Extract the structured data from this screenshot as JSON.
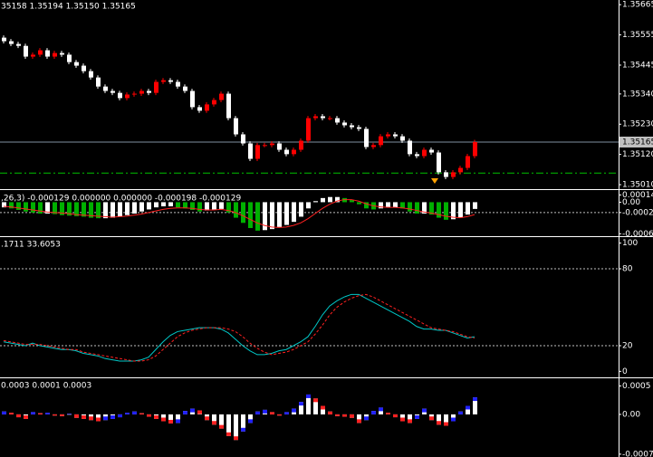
{
  "chart_data": [
    {
      "type": "candlestick",
      "title": "35158 1.35194 1.35150 1.35165",
      "open": [
        1.35545,
        1.35532,
        1.35522,
        1.35515,
        1.35476,
        1.35483,
        1.35499,
        1.35476,
        1.35489,
        1.35483,
        1.35456,
        1.35443,
        1.35423,
        1.354,
        1.35367,
        1.35351,
        1.35344,
        1.35325,
        1.35338,
        1.35341,
        1.35351,
        1.35344,
        1.35384,
        1.3539,
        1.35384,
        1.35367,
        1.35351,
        1.35292,
        1.35279,
        1.35302,
        1.35318,
        1.35341,
        1.35252,
        1.35193,
        1.3516,
        1.35104,
        1.35154,
        1.35154,
        1.3516,
        1.35137,
        1.35121,
        1.35137,
        1.3517,
        1.35252,
        1.35259,
        1.35252,
        1.35252,
        1.35236,
        1.35226,
        1.35219,
        1.35213,
        1.35147,
        1.35154,
        1.35186,
        1.35193,
        1.35186,
        1.3517,
        1.35121,
        1.35114,
        1.35137,
        1.35127,
        1.35055,
        1.35038,
        1.35055,
        1.35071,
        1.35114
      ],
      "high": [
        1.35553,
        1.3554,
        1.3553,
        1.35523,
        1.35491,
        1.35507,
        1.35507,
        1.35497,
        1.35497,
        1.35491,
        1.35464,
        1.35451,
        1.35431,
        1.35408,
        1.35375,
        1.35359,
        1.35352,
        1.35346,
        1.35349,
        1.35359,
        1.35359,
        1.35392,
        1.35398,
        1.35398,
        1.35392,
        1.35375,
        1.35359,
        1.353,
        1.3531,
        1.35326,
        1.35349,
        1.35349,
        1.3526,
        1.35201,
        1.35168,
        1.35162,
        1.35162,
        1.35168,
        1.35168,
        1.35145,
        1.35145,
        1.35178,
        1.3526,
        1.35267,
        1.35267,
        1.3526,
        1.3526,
        1.35244,
        1.35234,
        1.35227,
        1.35221,
        1.35162,
        1.35194,
        1.35201,
        1.35201,
        1.35194,
        1.35178,
        1.35129,
        1.35145,
        1.35145,
        1.35135,
        1.35063,
        1.35063,
        1.35079,
        1.35122,
        1.35173
      ],
      "low": [
        1.35524,
        1.35514,
        1.35507,
        1.35468,
        1.35468,
        1.35475,
        1.35468,
        1.35468,
        1.35475,
        1.35448,
        1.35435,
        1.35415,
        1.35392,
        1.35359,
        1.35343,
        1.35336,
        1.35317,
        1.35317,
        1.3533,
        1.35333,
        1.35336,
        1.35336,
        1.35376,
        1.35376,
        1.35359,
        1.35343,
        1.35284,
        1.35271,
        1.35271,
        1.35294,
        1.3531,
        1.35244,
        1.35185,
        1.35152,
        1.35096,
        1.35096,
        1.35146,
        1.35146,
        1.35129,
        1.35113,
        1.35113,
        1.35129,
        1.35162,
        1.35244,
        1.35244,
        1.35244,
        1.35228,
        1.35218,
        1.35211,
        1.35205,
        1.35139,
        1.35139,
        1.35146,
        1.35178,
        1.35178,
        1.35162,
        1.35113,
        1.35106,
        1.35106,
        1.35119,
        1.35047,
        1.3503,
        1.3503,
        1.35047,
        1.35063,
        1.35106
      ],
      "close": [
        1.35532,
        1.35522,
        1.35515,
        1.35476,
        1.35483,
        1.35499,
        1.35476,
        1.35489,
        1.35483,
        1.35456,
        1.35443,
        1.35423,
        1.354,
        1.35367,
        1.35351,
        1.35344,
        1.35325,
        1.35338,
        1.35341,
        1.35351,
        1.35344,
        1.35384,
        1.3539,
        1.35384,
        1.35367,
        1.35351,
        1.35292,
        1.35279,
        1.35302,
        1.35318,
        1.35341,
        1.35252,
        1.35193,
        1.3516,
        1.35104,
        1.35154,
        1.35154,
        1.3516,
        1.35137,
        1.35121,
        1.35137,
        1.3517,
        1.35252,
        1.35259,
        1.35252,
        1.35252,
        1.35236,
        1.35226,
        1.35219,
        1.35213,
        1.35147,
        1.35154,
        1.35186,
        1.35193,
        1.35186,
        1.3517,
        1.35121,
        1.35114,
        1.35137,
        1.35127,
        1.35055,
        1.35038,
        1.35055,
        1.35071,
        1.35114,
        1.35165
      ],
      "up_color": "#ff0000",
      "down_color": "#ffffff",
      "ylim": [
        1.34997,
        1.35682
      ],
      "yticks": [
        1.35665,
        1.35555,
        1.35445,
        {
          "value": 1.3534,
          "label": "1.35340"
        },
        {
          "value": 1.3523,
          "label": "1.35230"
        },
        {
          "value": 1.3512,
          "label": "1.35120"
        },
        {
          "value": 1.3501,
          "label": "1.35010"
        }
      ],
      "last_price": 1.35165,
      "level": 1.35052,
      "level_color": "#00c000"
    },
    {
      "type": "bar",
      "title": ",26,3) -0.000129 0.000000 0.000000 -0.000198 -0.000129",
      "series": [
        {
          "color": "#ffffff",
          "alt_color": "#00b000",
          "values": [
            -0.0001,
            -0.00012,
            -0.00015,
            -0.00018,
            -0.0002,
            -0.00022,
            -0.00022,
            -0.00023,
            -0.00025,
            -0.00026,
            -0.00027,
            -0.00028,
            -0.0003,
            -0.00031,
            -0.00031,
            -0.0003,
            -0.00028,
            -0.00025,
            -0.00022,
            -0.00018,
            -0.00014,
            -0.0001,
            -8e-05,
            -8e-05,
            -0.0001,
            -0.00012,
            -0.00015,
            -0.00018,
            -0.00016,
            -0.00014,
            -0.00013,
            -0.0002,
            -0.0003,
            -0.0004,
            -0.0005,
            -0.00055,
            -0.00054,
            -0.00052,
            -0.00048,
            -0.00044,
            -0.00038,
            -0.00028,
            -0.00012,
            2e-05,
            8e-05,
            0.0001,
            0.0001,
            8e-05,
            4e-05,
            -4e-05,
            -0.00012,
            -0.00014,
            -0.00012,
            -0.0001,
            -0.0001,
            -0.00012,
            -0.00018,
            -0.00022,
            -0.00022,
            -0.00024,
            -0.0003,
            -0.00034,
            -0.00033,
            -0.0003,
            -0.00024,
            -0.00013
          ]
        },
        {
          "type": "line",
          "color": "#ff2020",
          "values": [
            -8e-05,
            -9e-05,
            -0.00011,
            -0.00013,
            -0.00015,
            -0.00017,
            -0.00019,
            -0.0002,
            -0.00021,
            -0.00022,
            -0.00024,
            -0.00025,
            -0.00026,
            -0.00027,
            -0.00028,
            -0.00029,
            -0.00028,
            -0.00027,
            -0.00025,
            -0.00023,
            -0.0002,
            -0.00017,
            -0.00014,
            -0.00012,
            -0.00011,
            -0.00011,
            -0.00012,
            -0.00014,
            -0.00015,
            -0.00015,
            -0.00014,
            -0.00016,
            -0.0002,
            -0.00026,
            -0.00033,
            -0.0004,
            -0.00045,
            -0.00048,
            -0.00049,
            -0.00048,
            -0.00045,
            -0.0004,
            -0.00032,
            -0.00022,
            -0.00012,
            -4e-05,
            2e-05,
            5e-05,
            5e-05,
            2e-05,
            -3e-05,
            -7e-05,
            -9e-05,
            -0.0001,
            -0.0001,
            -0.00011,
            -0.00013,
            -0.00016,
            -0.00019,
            -0.00021,
            -0.00024,
            -0.00027,
            -0.00029,
            -0.0003,
            -0.00028,
            -0.00024
          ]
        }
      ],
      "ylim": [
        -0.00064,
        0.0002
      ],
      "yticks": [
        0.00014,
        {
          "value": 0,
          "label": "0.00"
        },
        -0.0002,
        -0.00061
      ],
      "levels": [
        -0.0002
      ]
    },
    {
      "type": "line",
      "title": ".1711 33.6053",
      "series": [
        {
          "color": "#00c8c8",
          "values": [
            23,
            22,
            21,
            20,
            22,
            20,
            19,
            18,
            17,
            17,
            16,
            14,
            13,
            12,
            10,
            9,
            8,
            8,
            8,
            9,
            11,
            17,
            23,
            28,
            31,
            32,
            33,
            34,
            34,
            34,
            33,
            30,
            25,
            20,
            16,
            13,
            13,
            14,
            16,
            17,
            20,
            23,
            27,
            35,
            44,
            51,
            55,
            58,
            60,
            60,
            57,
            54,
            51,
            48,
            45,
            42,
            39,
            35,
            33,
            33,
            32,
            32,
            30,
            28,
            26,
            27
          ]
        },
        {
          "color": "#ff2020",
          "dashed": true,
          "values": [
            24,
            23,
            22,
            21,
            21,
            21,
            20,
            19,
            18,
            17,
            17,
            15,
            14,
            13,
            12,
            11,
            10,
            9,
            8,
            8,
            9,
            12,
            17,
            22,
            27,
            30,
            32,
            33,
            34,
            34,
            34,
            33,
            31,
            27,
            22,
            18,
            15,
            13,
            14,
            15,
            17,
            20,
            23,
            29,
            36,
            44,
            50,
            54,
            57,
            59,
            60,
            58,
            55,
            52,
            49,
            46,
            43,
            40,
            37,
            34,
            33,
            32,
            31,
            29,
            27,
            26
          ]
        }
      ],
      "ylim": [
        -4,
        104
      ],
      "yticks": [
        100,
        80,
        20,
        0
      ],
      "levels": [
        80,
        20
      ]
    },
    {
      "type": "bar",
      "title": "0.0003 0.0001 0.0003",
      "series": [
        {
          "color": "#ffffff",
          "up_color": "#2020ff",
          "down_color": "#ff2020",
          "values": [
            5e-05,
            3e-05,
            -5e-05,
            -8e-05,
            4e-05,
            2e-05,
            3e-05,
            -2e-05,
            -3e-05,
            1e-05,
            -6e-05,
            -8e-05,
            -0.0001,
            -0.00012,
            -0.0001,
            -8e-05,
            -5e-05,
            3e-05,
            5e-05,
            2e-05,
            -4e-05,
            -8e-05,
            -0.00012,
            -0.00016,
            -0.00015,
            6e-05,
            0.0001,
            7e-05,
            -0.0001,
            -0.00018,
            -0.00025,
            -0.00038,
            -0.00045,
            -0.0003,
            -0.00015,
            5e-05,
            8e-05,
            4e-05,
            -2e-05,
            4e-05,
            0.0001,
            0.00022,
            0.00035,
            0.00028,
            0.00015,
            5e-05,
            -3e-05,
            -4e-05,
            -6e-05,
            -0.00015,
            -0.0001,
            6e-05,
            0.00012,
            3e-05,
            -5e-05,
            -0.00012,
            -0.00015,
            -8e-05,
            0.0001,
            -0.0001,
            -0.00018,
            -0.0002,
            -0.00012,
            5e-05,
            0.00015,
            0.0003
          ]
        }
      ],
      "ylim": [
        -0.00075,
        0.00062
      ],
      "yticks": [
        0.0005,
        {
          "value": 0,
          "label": "0.00"
        },
        -0.0007
      ]
    }
  ]
}
